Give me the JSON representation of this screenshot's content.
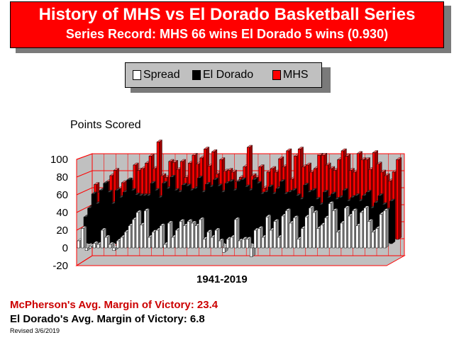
{
  "header": {
    "title": "History of MHS vs El Dorado Basketball Series",
    "subtitle": "Series Record:  MHS 66 wins  El Dorado 5 wins (0.930)"
  },
  "legend": [
    {
      "label": "Spread",
      "color": "#ffffff"
    },
    {
      "label": "El Dorado",
      "color": "#000000"
    },
    {
      "label": "MHS",
      "color": "#ff0000"
    }
  ],
  "footer": {
    "mcpherson_avg": "McPherson's Avg. Margin of Victory: 23.4",
    "eldorado_avg": "El Dorado's Avg. Margin of Victory: 6.8",
    "revised": "Revised 3/6/2019"
  },
  "chart_data": {
    "type": "bar",
    "ylabel": "Points Scored",
    "xlabel": "1941-2019",
    "ylim": [
      -20,
      100
    ],
    "yticks": [
      100,
      80,
      60,
      40,
      20,
      0,
      -20
    ],
    "grid": true,
    "series": [
      {
        "name": "Spread",
        "color": "#ffffff",
        "values": [
          8,
          22,
          -3,
          2,
          5,
          4,
          20,
          12,
          4,
          -3,
          8,
          12,
          18,
          25,
          32,
          40,
          26,
          42,
          12,
          18,
          20,
          25,
          4,
          28,
          12,
          20,
          30,
          25,
          30,
          28,
          25,
          32,
          10,
          18,
          12,
          20,
          8,
          -5,
          10,
          12,
          32,
          8,
          10,
          10,
          -10,
          20,
          22,
          12,
          35,
          20,
          30,
          12,
          36,
          42,
          28,
          34,
          10,
          22,
          35,
          45,
          40,
          22,
          26,
          34,
          50,
          42,
          18,
          28,
          45,
          36,
          42,
          25,
          40,
          45,
          30,
          18,
          22,
          38,
          42
        ]
      },
      {
        "name": "El Dorado",
        "color": "#000000",
        "values": [
          30,
          40,
          56,
          45,
          60,
          68,
          58,
          45,
          60,
          52,
          58,
          72,
          60,
          55,
          54,
          54,
          54,
          68,
          60,
          52,
          68,
          62,
          75,
          60,
          58,
          66,
          65,
          60,
          62,
          74,
          58,
          67,
          64,
          72,
          65,
          58,
          68,
          70,
          60,
          70,
          72,
          64,
          60,
          72,
          68,
          56,
          58,
          64,
          56,
          62,
          70,
          56,
          58,
          60,
          54,
          50,
          66,
          58,
          60,
          50,
          44,
          58,
          52,
          56,
          50,
          52,
          60,
          48,
          52,
          54,
          48,
          54,
          58,
          40,
          46,
          54,
          44,
          38,
          48
        ]
      },
      {
        "name": "MHS",
        "color": "#ff0000",
        "values": [
          38,
          62,
          53,
          47,
          65,
          72,
          78,
          57,
          64,
          49,
          66,
          84,
          78,
          80,
          86,
          94,
          80,
          110,
          72,
          70,
          88,
          87,
          79,
          88,
          70,
          86,
          95,
          85,
          92,
          102,
          83,
          99,
          74,
          90,
          77,
          78,
          76,
          65,
          70,
          82,
          104,
          72,
          70,
          82,
          58,
          76,
          80,
          76,
          91,
          82,
          100,
          68,
          94,
          102,
          82,
          84,
          76,
          80,
          95,
          95,
          84,
          80,
          78,
          90,
          100,
          94,
          78,
          76,
          97,
          90,
          90,
          79,
          98,
          85,
          76,
          72,
          66,
          76,
          90
        ]
      }
    ]
  }
}
